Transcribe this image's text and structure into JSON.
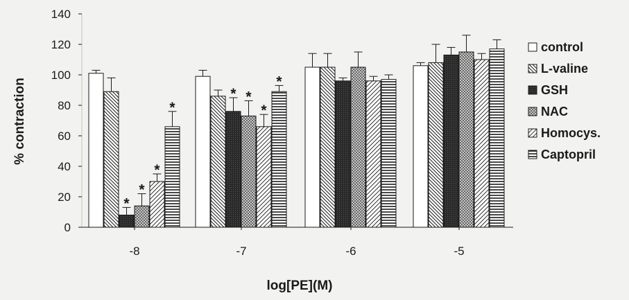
{
  "chart_data": {
    "type": "bar",
    "title": "",
    "xlabel": "log[PE](M)",
    "ylabel": "% contraction",
    "ylim": [
      0,
      140
    ],
    "yticks": [
      0,
      20,
      40,
      60,
      80,
      100,
      120,
      140
    ],
    "grid": false,
    "legend_position": "right",
    "categories": [
      "-8",
      "-7",
      "-6",
      "-5"
    ],
    "series": [
      {
        "name": "control",
        "pattern": "open",
        "values": [
          101,
          99,
          105,
          106
        ],
        "errors": [
          2,
          4,
          9,
          2
        ],
        "significant": [
          false,
          false,
          false,
          false
        ]
      },
      {
        "name": "L-valine",
        "pattern": "diagonal-down",
        "values": [
          89,
          86,
          105,
          108
        ],
        "errors": [
          9,
          4,
          9,
          12
        ],
        "significant": [
          false,
          false,
          false,
          false
        ]
      },
      {
        "name": "GSH",
        "pattern": "solid-dark",
        "values": [
          8,
          76,
          96,
          113
        ],
        "errors": [
          5,
          9,
          2,
          5
        ],
        "significant": [
          true,
          true,
          false,
          false
        ]
      },
      {
        "name": "NAC",
        "pattern": "crosshatch",
        "values": [
          14,
          73,
          105,
          115
        ],
        "errors": [
          8,
          10,
          10,
          11
        ],
        "significant": [
          true,
          true,
          false,
          false
        ]
      },
      {
        "name": "Homocys.",
        "pattern": "diagonal-up",
        "values": [
          30,
          66,
          96,
          110
        ],
        "errors": [
          5,
          8,
          3,
          4
        ],
        "significant": [
          true,
          true,
          false,
          false
        ]
      },
      {
        "name": "Captopril",
        "pattern": "horizontal",
        "values": [
          66,
          89,
          97,
          117
        ],
        "errors": [
          10,
          4,
          3,
          6
        ],
        "significant": [
          true,
          true,
          false,
          false
        ]
      }
    ],
    "significance_marker": "*"
  },
  "colors": {
    "ink": "#1a1a1a",
    "background": "#f2f2f0",
    "bar_fill": "#ffffff"
  }
}
